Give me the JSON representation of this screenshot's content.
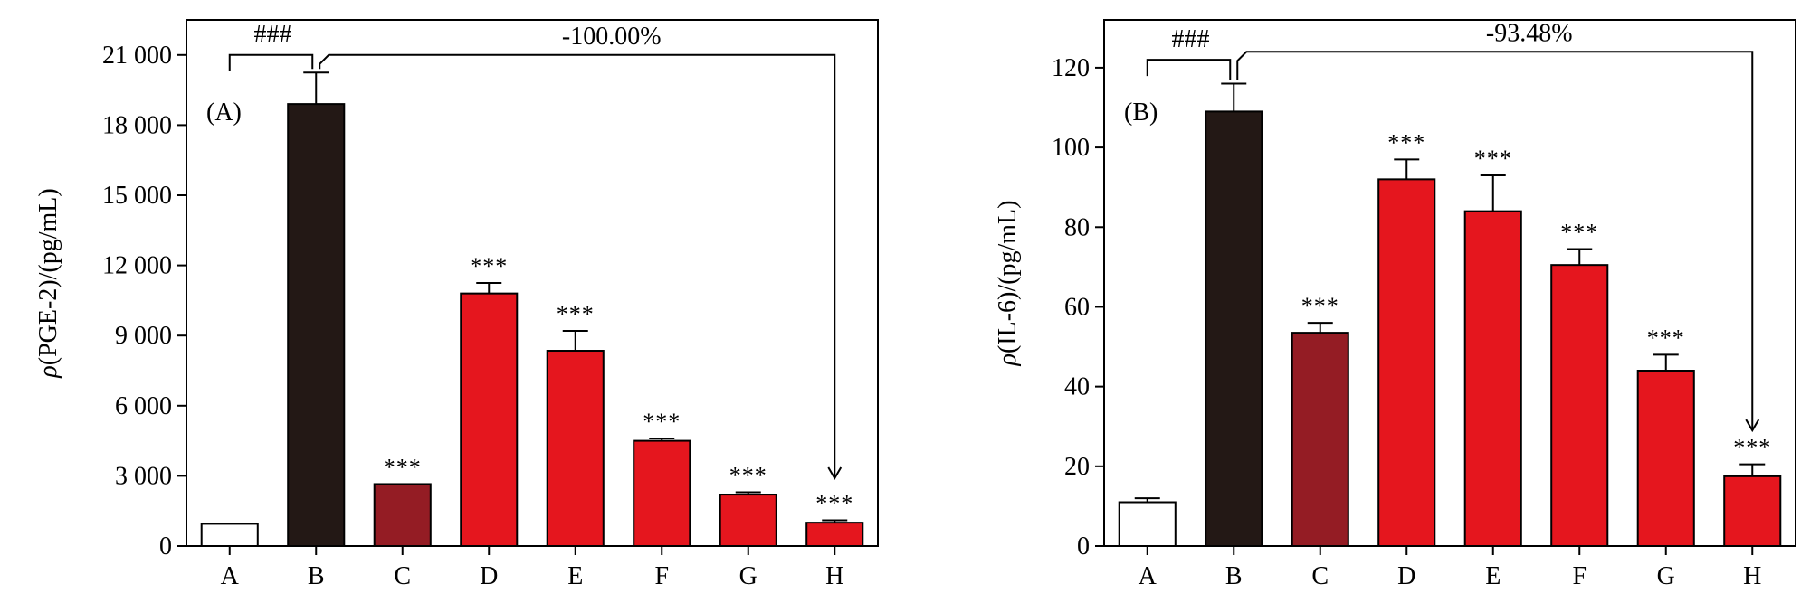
{
  "chart_data": [
    {
      "type": "bar",
      "panel_label": "(A)",
      "ylabel_italic": "ρ",
      "ylabel_rest": "(PGE-2)/(pg/mL)",
      "ylim": [
        0,
        22500
      ],
      "yticks": [
        0,
        3000,
        6000,
        9000,
        12000,
        15000,
        18000,
        21000
      ],
      "ytick_labels": [
        "0",
        "3 000",
        "6 000",
        "9 000",
        "12 000",
        "15 000",
        "18 000",
        "21 000"
      ],
      "categories": [
        "A",
        "B",
        "C",
        "D",
        "E",
        "F",
        "G",
        "H"
      ],
      "values": [
        950,
        18900,
        2650,
        10800,
        8350,
        4500,
        2200,
        1000
      ],
      "errors": [
        0,
        1350,
        0,
        450,
        850,
        100,
        100,
        100
      ],
      "significance": [
        "",
        "",
        "***",
        "***",
        "***",
        "***",
        "***",
        "***"
      ],
      "colors": [
        "#ffffff",
        "#231815",
        "#941c24",
        "#e5161e",
        "#e5161e",
        "#e5161e",
        "#e5161e",
        "#e5161e"
      ],
      "bracket_left_label": "###",
      "bracket_right_label": "-100.00%",
      "bracket_left_y": 21000,
      "bracket_right_y": 21000,
      "bracket_end_y": 2900
    },
    {
      "type": "bar",
      "panel_label": "(B)",
      "ylabel_italic": "ρ",
      "ylabel_rest": "(IL-6)/(pg/mL)",
      "ylim": [
        0,
        132
      ],
      "yticks": [
        0,
        20,
        40,
        60,
        80,
        100,
        120
      ],
      "ytick_labels": [
        "0",
        "20",
        "40",
        "60",
        "80",
        "100",
        "120"
      ],
      "categories": [
        "A",
        "B",
        "C",
        "D",
        "E",
        "F",
        "G",
        "H"
      ],
      "values": [
        11,
        109,
        53.5,
        92,
        84,
        70.5,
        44,
        17.5
      ],
      "errors": [
        1,
        7,
        2.5,
        5,
        9,
        4,
        4,
        3
      ],
      "significance": [
        "",
        "",
        "***",
        "***",
        "***",
        "***",
        "***",
        "***"
      ],
      "colors": [
        "#ffffff",
        "#231815",
        "#941c24",
        "#e5161e",
        "#e5161e",
        "#e5161e",
        "#e5161e",
        "#e5161e"
      ],
      "bracket_left_label": "###",
      "bracket_right_label": "-93.48%",
      "bracket_left_y": 122,
      "bracket_right_y": 124,
      "bracket_end_y": 29
    }
  ]
}
